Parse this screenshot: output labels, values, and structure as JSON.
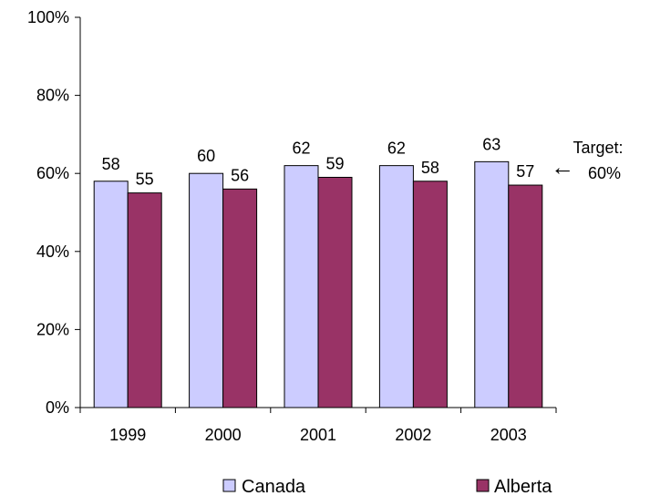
{
  "chart_data": {
    "type": "bar",
    "categories": [
      "1999",
      "2000",
      "2001",
      "2002",
      "2003"
    ],
    "series": [
      {
        "name": "Canada",
        "values": [
          58,
          60,
          62,
          62,
          63
        ],
        "labels": [
          "58",
          "60",
          "62",
          "62",
          "63"
        ],
        "color": "#CCCCFF"
      },
      {
        "name": "Alberta",
        "values": [
          55,
          56,
          59,
          58,
          57
        ],
        "labels": [
          "55",
          "56",
          "59",
          "58",
          "57"
        ],
        "color": "#993366"
      }
    ],
    "ylim": [
      0,
      100
    ],
    "yticks": [
      "0%",
      "20%",
      "40%",
      "60%",
      "80%",
      "100%"
    ],
    "ytick_values": [
      0,
      20,
      40,
      60,
      80,
      100
    ],
    "grid": false,
    "legend_position": "bottom",
    "annotation": {
      "arrow": "←",
      "line1": "Target:",
      "line2": "60%",
      "value": 60
    }
  }
}
